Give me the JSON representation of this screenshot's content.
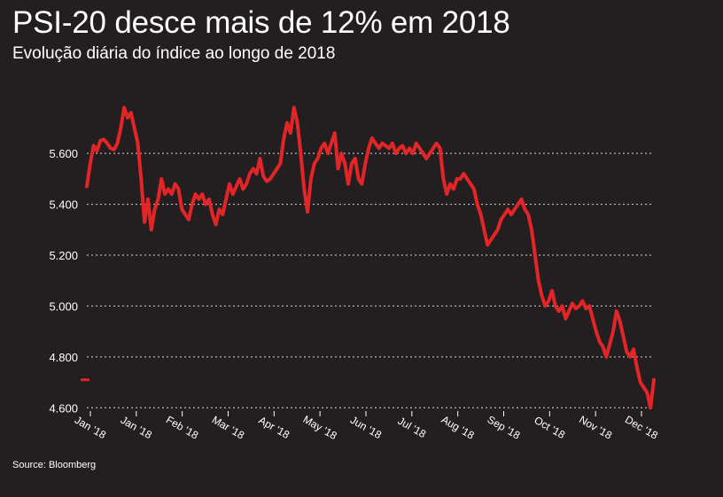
{
  "title": "PSI-20 desce mais de 12% em 2018",
  "subtitle": "Evolução diária do índice ao longo de 2018",
  "source": "Source: Bloomberg",
  "chart_data": {
    "type": "line",
    "title": "PSI-20 desce mais de 12% em 2018",
    "subtitle": "Evolução diária do índice ao longo de 2018",
    "xlabel": "",
    "ylabel": "",
    "ylim": [
      4580,
      5820
    ],
    "yticks": [
      4600,
      4800,
      5000,
      5200,
      5400,
      5600
    ],
    "ytick_labels": [
      "4.600",
      "4.800",
      "5.000",
      "5.200",
      "5.400",
      "5.600"
    ],
    "xtick_labels": [
      "Jan '18",
      "Jan '18",
      "Feb '18",
      "Mar '18",
      "Apr '18",
      "May '18",
      "Jun '18",
      "Jul '18",
      "Aug '18",
      "Sep '18",
      "Oct '18",
      "Nov '18",
      "Dec '18"
    ],
    "grid": "horizontal dotted",
    "line_color": "#e42527",
    "marker_value": 4710,
    "series": [
      {
        "values": [
          5470,
          5560,
          5630,
          5610,
          5650,
          5655,
          5640,
          5620,
          5615,
          5640,
          5700,
          5780,
          5740,
          5760,
          5700,
          5640,
          5500,
          5330,
          5420,
          5300,
          5380,
          5420,
          5500,
          5440,
          5460,
          5440,
          5480,
          5460,
          5380,
          5360,
          5340,
          5400,
          5440,
          5420,
          5440,
          5400,
          5420,
          5360,
          5320,
          5380,
          5360,
          5420,
          5480,
          5440,
          5470,
          5500,
          5460,
          5480,
          5520,
          5540,
          5520,
          5580,
          5510,
          5490,
          5500,
          5520,
          5540,
          5560,
          5660,
          5720,
          5680,
          5780,
          5720,
          5600,
          5460,
          5370,
          5500,
          5560,
          5580,
          5620,
          5640,
          5600,
          5640,
          5680,
          5540,
          5600,
          5560,
          5480,
          5560,
          5580,
          5500,
          5480,
          5560,
          5620,
          5660,
          5640,
          5620,
          5640,
          5630,
          5620,
          5640,
          5600,
          5620,
          5630,
          5600,
          5620,
          5600,
          5640,
          5620,
          5600,
          5580,
          5600,
          5620,
          5640,
          5620,
          5500,
          5440,
          5480,
          5460,
          5500,
          5500,
          5520,
          5500,
          5480,
          5460,
          5400,
          5360,
          5300,
          5240,
          5260,
          5280,
          5300,
          5340,
          5360,
          5380,
          5360,
          5380,
          5400,
          5420,
          5380,
          5360,
          5300,
          5200,
          5100,
          5040,
          5000,
          5020,
          5060,
          5000,
          4980,
          5000,
          4950,
          4980,
          5010,
          4990,
          5000,
          5020,
          4990,
          5000,
          4950,
          4900,
          4860,
          4840,
          4800,
          4850,
          4900,
          4980,
          4940,
          4880,
          4820,
          4800,
          4830,
          4760,
          4700,
          4680,
          4660,
          4600,
          4710
        ]
      }
    ]
  }
}
